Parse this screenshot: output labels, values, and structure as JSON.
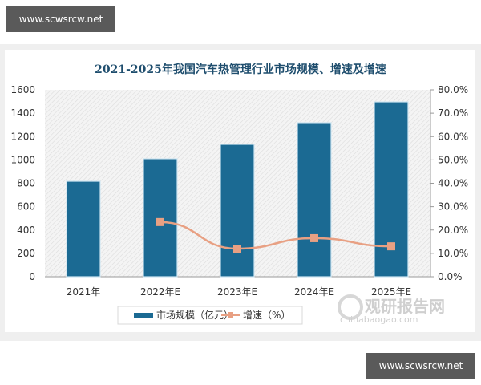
{
  "watermarks": {
    "top": "www.scwsrcw.net",
    "bottom": "www.scwsrcw.net"
  },
  "logo": {
    "name": "观研报告网",
    "url_text": "chinabaogao.com"
  },
  "chart_data": {
    "type": "bar",
    "title": "2021-2025年我国汽车热管理行业市场规模、增速及增速",
    "categories": [
      "2021年",
      "2022年E",
      "2023年E",
      "2024年E",
      "2025年E"
    ],
    "series": [
      {
        "name": "市场规模（亿元）",
        "type": "bar",
        "axis": "left",
        "color": "#1b6a93",
        "values": [
          817,
          1010,
          1133,
          1319,
          1497
        ]
      },
      {
        "name": "增速（%）",
        "type": "line",
        "axis": "right",
        "color": "#e8a083",
        "values": [
          null,
          23.4,
          12.0,
          16.5,
          13.0
        ]
      }
    ],
    "y_left": {
      "ticks": [
        "0",
        "200",
        "400",
        "600",
        "800",
        "1000",
        "1200",
        "1400",
        "1600"
      ],
      "ylim": [
        0,
        1600
      ]
    },
    "y_right": {
      "ticks": [
        "0.0%",
        "10.0%",
        "20.0%",
        "30.0%",
        "40.0%",
        "50.0%",
        "60.0%",
        "70.0%",
        "80.0%"
      ],
      "ylim": [
        0,
        80
      ]
    },
    "xlabel": "",
    "ylabel": "",
    "grid": false,
    "legend_position": "bottom"
  }
}
